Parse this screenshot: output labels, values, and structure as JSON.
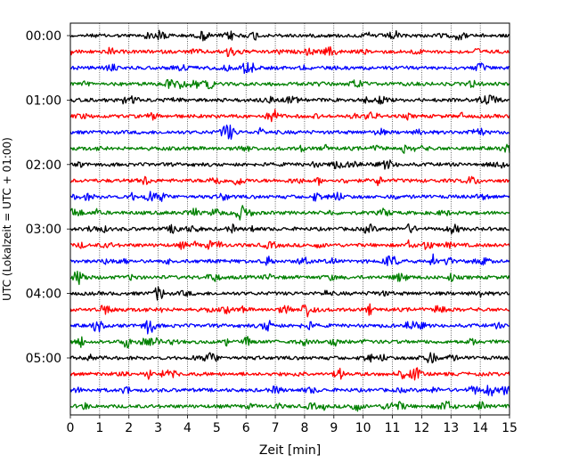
{
  "chart_data": {
    "type": "line",
    "title": "",
    "xlabel": "Zeit  [min]",
    "ylabel": "UTC (Lokalzeit = UTC + 01:00)",
    "xlim": [
      0,
      15
    ],
    "x_ticks": [
      "0",
      "1",
      "2",
      "3",
      "4",
      "5",
      "6",
      "7",
      "8",
      "9",
      "10",
      "11",
      "12",
      "13",
      "14",
      "15"
    ],
    "y_tick_labels": [
      "00:00",
      "01:00",
      "02:00",
      "03:00",
      "04:00",
      "05:00"
    ],
    "grid": "vertical dotted at each minute",
    "line_minutes": 15,
    "colors": [
      "#000000",
      "#ff0000",
      "#0000ff",
      "#008000"
    ],
    "series": [
      {
        "start": "00:00",
        "color": "#000000"
      },
      {
        "start": "00:15",
        "color": "#ff0000"
      },
      {
        "start": "00:30",
        "color": "#0000ff"
      },
      {
        "start": "00:45",
        "color": "#008000"
      },
      {
        "start": "01:00",
        "color": "#000000"
      },
      {
        "start": "01:15",
        "color": "#ff0000"
      },
      {
        "start": "01:30",
        "color": "#0000ff"
      },
      {
        "start": "01:45",
        "color": "#008000"
      },
      {
        "start": "02:00",
        "color": "#000000"
      },
      {
        "start": "02:15",
        "color": "#ff0000"
      },
      {
        "start": "02:30",
        "color": "#0000ff"
      },
      {
        "start": "02:45",
        "color": "#008000"
      },
      {
        "start": "03:00",
        "color": "#000000"
      },
      {
        "start": "03:15",
        "color": "#ff0000"
      },
      {
        "start": "03:30",
        "color": "#0000ff"
      },
      {
        "start": "03:45",
        "color": "#008000"
      },
      {
        "start": "04:00",
        "color": "#000000"
      },
      {
        "start": "04:15",
        "color": "#ff0000"
      },
      {
        "start": "04:30",
        "color": "#0000ff"
      },
      {
        "start": "04:45",
        "color": "#008000"
      },
      {
        "start": "05:00",
        "color": "#000000"
      },
      {
        "start": "05:15",
        "color": "#ff0000"
      },
      {
        "start": "05:30",
        "color": "#0000ff"
      },
      {
        "start": "05:45",
        "color": "#008000"
      }
    ]
  }
}
